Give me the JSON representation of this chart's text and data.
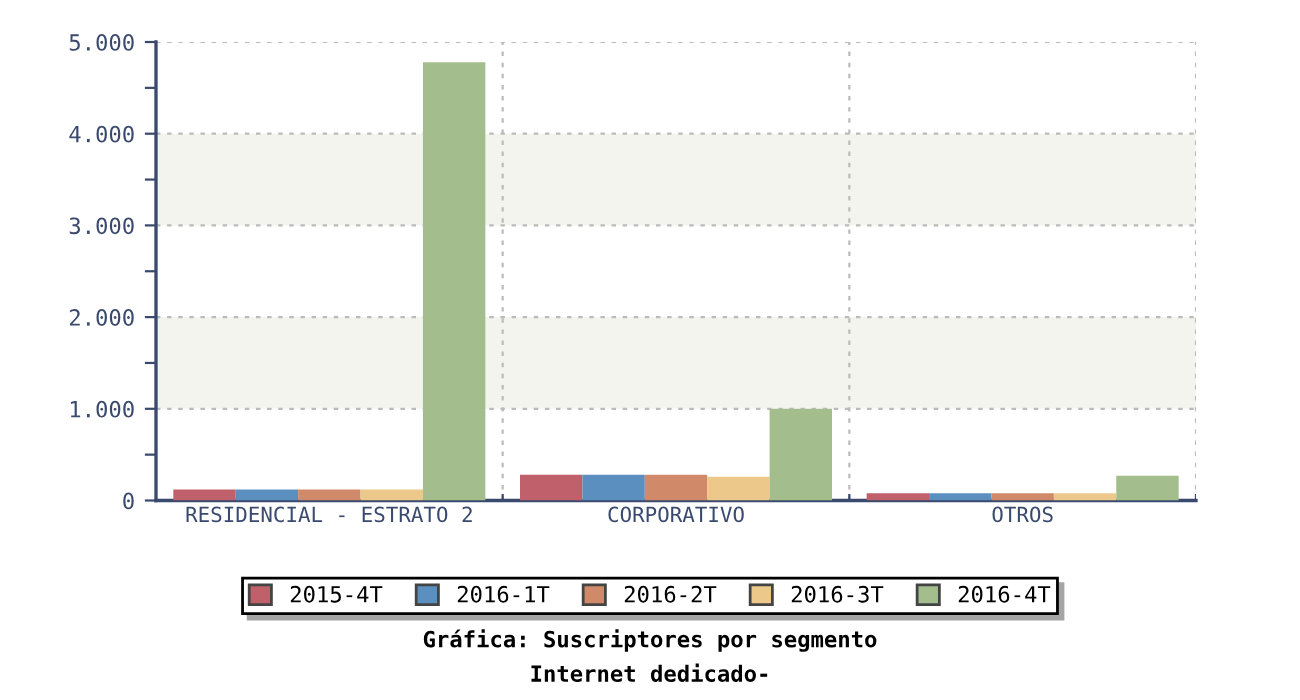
{
  "chart_data": {
    "type": "bar",
    "title": "Gráfica: Suscriptores por segmento",
    "subtitle": "Internet dedicado-",
    "categories": [
      "RESIDENCIAL - ESTRATO 2",
      "CORPORATIVO",
      "OTROS"
    ],
    "series": [
      {
        "name": "2015-4T",
        "color": "#c0606a",
        "values": [
          120,
          280,
          80
        ]
      },
      {
        "name": "2016-1T",
        "color": "#5b8fc0",
        "values": [
          120,
          280,
          80
        ]
      },
      {
        "name": "2016-2T",
        "color": "#d08a6a",
        "values": [
          120,
          280,
          80
        ]
      },
      {
        "name": "2016-3T",
        "color": "#ecc98a",
        "values": [
          120,
          260,
          80
        ]
      },
      {
        "name": "2016-4T",
        "color": "#a3be8c",
        "values": [
          4780,
          1000,
          270
        ]
      }
    ],
    "ylim": [
      0,
      5000
    ],
    "yticks": [
      {
        "value": 0,
        "label": "0"
      },
      {
        "value": 500,
        "label": null
      },
      {
        "value": 1000,
        "label": "1.000"
      },
      {
        "value": 1500,
        "label": null
      },
      {
        "value": 2000,
        "label": "2.000"
      },
      {
        "value": 2500,
        "label": null
      },
      {
        "value": 3000,
        "label": "3.000"
      },
      {
        "value": 3500,
        "label": null
      },
      {
        "value": 4000,
        "label": "4.000"
      },
      {
        "value": 4500,
        "label": null
      },
      {
        "value": 5000,
        "label": "5.000"
      }
    ],
    "bands": [
      {
        "axis": "y",
        "from": 1000,
        "to": 2000,
        "color": "#f4f4ef"
      },
      {
        "axis": "y",
        "from": 3000,
        "to": 4000,
        "color": "#f4f4ef"
      }
    ],
    "grid": true,
    "legend": "bottom"
  }
}
